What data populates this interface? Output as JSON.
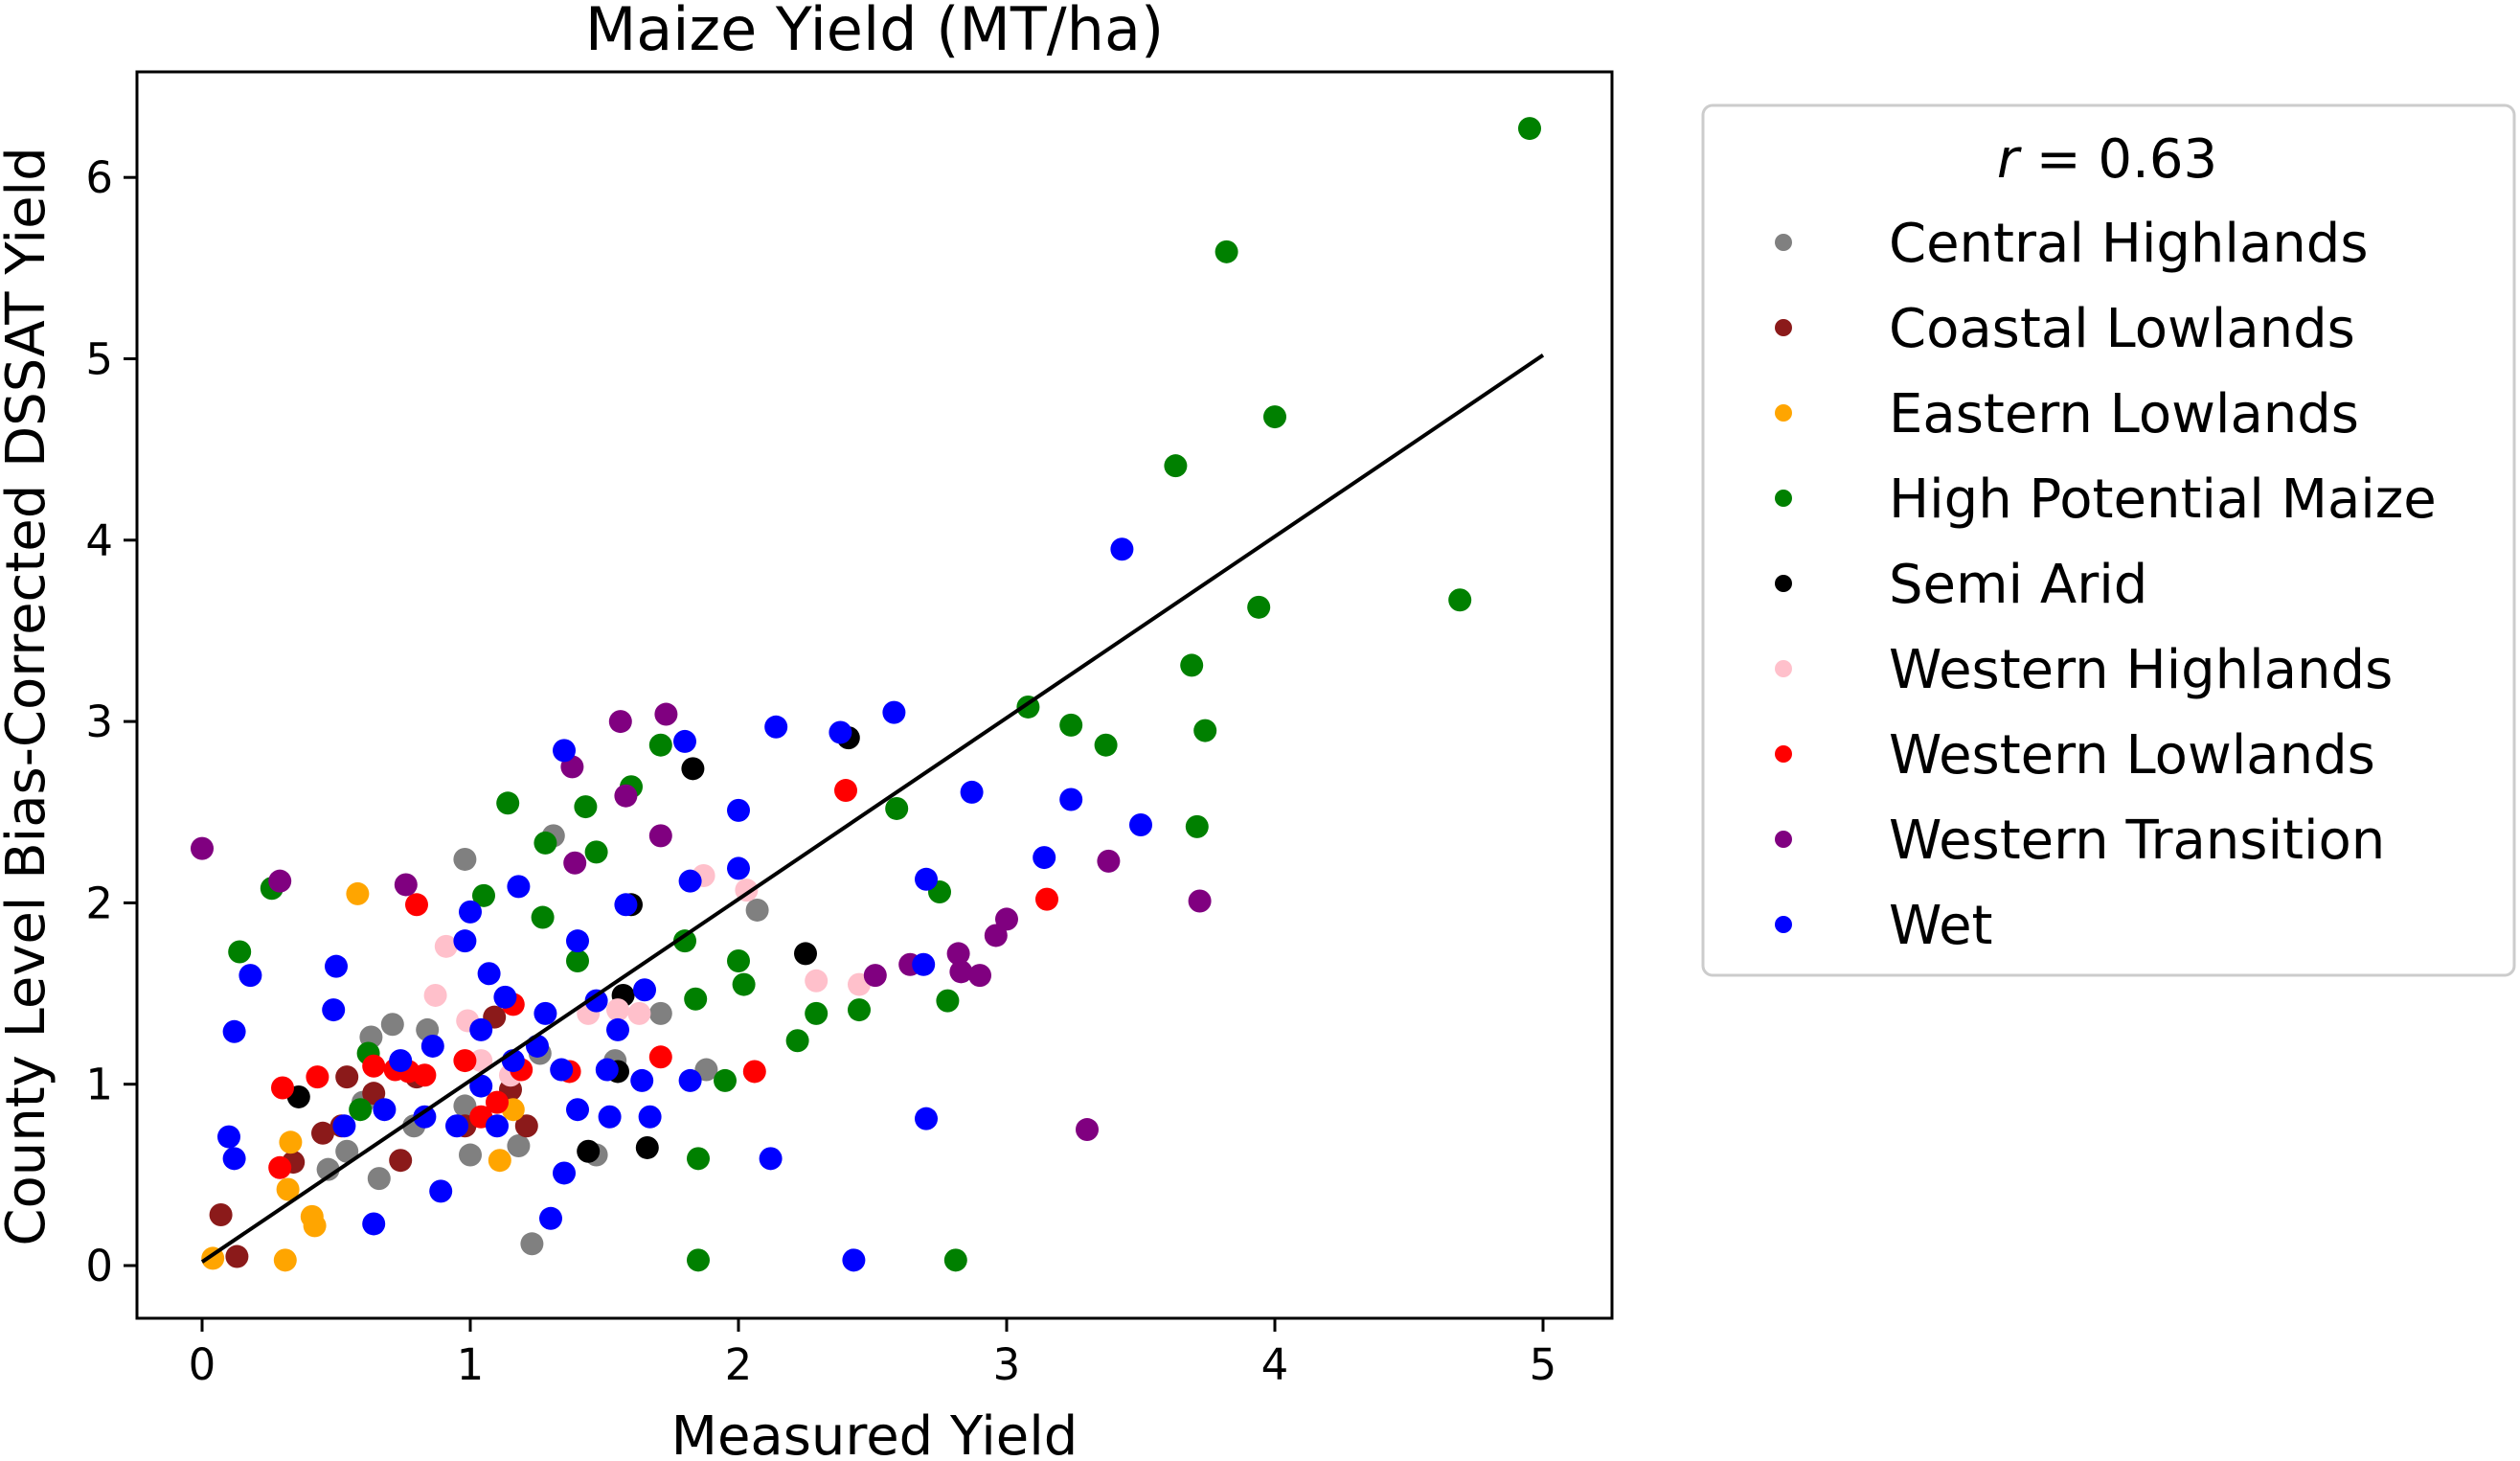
{
  "chart_data": {
    "type": "scatter",
    "title": "Maize Yield (MT/ha)",
    "xlabel": "Measured Yield",
    "ylabel": "County Level Bias-Corrected DSSAT Yield",
    "xlim": [
      -0.25,
      5.25
    ],
    "ylim": [
      -0.3,
      6.6
    ],
    "xticks": [
      0,
      1,
      2,
      3,
      4,
      5
    ],
    "yticks": [
      0,
      1,
      2,
      3,
      4,
      5,
      6
    ],
    "grid": false,
    "legend": {
      "placement": "outside-right",
      "title_var": "r",
      "title_value": " = 0.63"
    },
    "fit_line": {
      "x": [
        0,
        5
      ],
      "y": [
        0.02,
        5.02
      ],
      "color": "#000000"
    },
    "series": [
      {
        "name": "Central Highlands",
        "color": "#808080",
        "points": [
          [
            0.98,
            2.24
          ],
          [
            1.31,
            2.37
          ],
          [
            2.07,
            1.96
          ],
          [
            0.84,
            1.3
          ],
          [
            0.71,
            1.33
          ],
          [
            0.63,
            1.26
          ],
          [
            0.98,
            0.88
          ],
          [
            0.6,
            0.9
          ],
          [
            0.54,
            0.63
          ],
          [
            1.0,
            0.61
          ],
          [
            1.23,
            0.12
          ],
          [
            1.47,
            0.61
          ],
          [
            1.88,
            1.08
          ],
          [
            1.54,
            1.13
          ],
          [
            1.71,
            1.39
          ],
          [
            0.66,
            0.48
          ],
          [
            0.79,
            0.77
          ],
          [
            1.18,
            0.66
          ],
          [
            0.47,
            0.53
          ],
          [
            1.26,
            1.17
          ]
        ]
      },
      {
        "name": "Coastal Lowlands",
        "color": "#8b1a1a",
        "points": [
          [
            0.07,
            0.28
          ],
          [
            0.13,
            0.05
          ],
          [
            0.34,
            0.57
          ],
          [
            0.45,
            0.73
          ],
          [
            0.52,
            0.77
          ],
          [
            0.74,
            0.58
          ],
          [
            0.54,
            1.04
          ],
          [
            0.64,
            0.95
          ],
          [
            0.8,
            1.04
          ],
          [
            0.98,
            0.77
          ],
          [
            1.21,
            0.77
          ],
          [
            1.15,
            0.97
          ],
          [
            1.09,
            1.37
          ]
        ]
      },
      {
        "name": "Eastern Lowlands",
        "color": "#ffa500",
        "points": [
          [
            0.04,
            0.04
          ],
          [
            0.31,
            0.03
          ],
          [
            0.41,
            0.27
          ],
          [
            0.42,
            0.22
          ],
          [
            0.33,
            0.68
          ],
          [
            0.32,
            0.42
          ],
          [
            0.58,
            2.05
          ],
          [
            1.11,
            0.58
          ],
          [
            1.16,
            0.86
          ]
        ]
      },
      {
        "name": "High Potential Maize",
        "color": "#008000",
        "points": [
          [
            4.95,
            6.27
          ],
          [
            3.82,
            5.59
          ],
          [
            4.0,
            4.68
          ],
          [
            3.63,
            4.41
          ],
          [
            3.94,
            3.63
          ],
          [
            4.69,
            3.67
          ],
          [
            3.69,
            3.31
          ],
          [
            3.08,
            3.08
          ],
          [
            3.24,
            2.98
          ],
          [
            3.37,
            2.87
          ],
          [
            3.74,
            2.95
          ],
          [
            3.71,
            2.42
          ],
          [
            2.59,
            2.52
          ],
          [
            2.75,
            2.06
          ],
          [
            2.78,
            1.46
          ],
          [
            2.45,
            1.41
          ],
          [
            2.29,
            1.39
          ],
          [
            2.22,
            1.24
          ],
          [
            1.95,
            1.02
          ],
          [
            1.85,
            0.59
          ],
          [
            1.85,
            0.03
          ],
          [
            2.81,
            0.03
          ],
          [
            2.0,
            1.68
          ],
          [
            2.02,
            1.55
          ],
          [
            1.84,
            1.47
          ],
          [
            1.8,
            1.79
          ],
          [
            1.71,
            2.87
          ],
          [
            1.6,
            2.64
          ],
          [
            1.47,
            2.28
          ],
          [
            1.43,
            2.53
          ],
          [
            1.28,
            2.33
          ],
          [
            1.14,
            2.55
          ],
          [
            1.05,
            2.04
          ],
          [
            0.26,
            2.08
          ],
          [
            0.14,
            1.73
          ],
          [
            0.62,
            1.17
          ],
          [
            1.27,
            1.92
          ],
          [
            1.4,
            1.68
          ],
          [
            0.59,
            0.86
          ]
        ]
      },
      {
        "name": "Semi Arid",
        "color": "#000000",
        "points": [
          [
            2.41,
            2.91
          ],
          [
            1.83,
            2.74
          ],
          [
            1.6,
            1.99
          ],
          [
            2.25,
            1.72
          ],
          [
            1.57,
            1.49
          ],
          [
            1.55,
            1.07
          ],
          [
            1.66,
            0.65
          ],
          [
            1.44,
            0.63
          ],
          [
            0.36,
            0.93
          ]
        ]
      },
      {
        "name": "Western Highlands",
        "color": "#ffc0cb",
        "points": [
          [
            1.87,
            2.15
          ],
          [
            2.03,
            2.07
          ],
          [
            2.29,
            1.57
          ],
          [
            2.45,
            1.55
          ],
          [
            0.91,
            1.76
          ],
          [
            0.87,
            1.49
          ],
          [
            0.99,
            1.35
          ],
          [
            1.55,
            1.41
          ],
          [
            1.63,
            1.39
          ],
          [
            1.44,
            1.39
          ],
          [
            1.15,
            1.05
          ],
          [
            1.04,
            1.13
          ]
        ]
      },
      {
        "name": "Western Lowlands",
        "color": "#ff0000",
        "points": [
          [
            2.4,
            2.62
          ],
          [
            3.15,
            2.02
          ],
          [
            0.8,
            1.99
          ],
          [
            2.06,
            1.07
          ],
          [
            1.71,
            1.15
          ],
          [
            1.16,
            1.44
          ],
          [
            0.98,
            1.13
          ],
          [
            0.77,
            1.07
          ],
          [
            0.64,
            1.1
          ],
          [
            0.43,
            1.04
          ],
          [
            0.3,
            0.98
          ],
          [
            0.29,
            0.54
          ],
          [
            0.72,
            1.08
          ],
          [
            0.83,
            1.05
          ],
          [
            1.19,
            1.08
          ],
          [
            1.37,
            1.07
          ],
          [
            1.1,
            0.9
          ],
          [
            1.04,
            0.82
          ]
        ]
      },
      {
        "name": "Western Transition",
        "color": "#800080",
        "points": [
          [
            0,
            2.3
          ],
          [
            0.29,
            2.12
          ],
          [
            0.76,
            2.1
          ],
          [
            1.38,
            2.75
          ],
          [
            1.56,
            3.0
          ],
          [
            1.73,
            3.04
          ],
          [
            1.58,
            2.59
          ],
          [
            1.71,
            2.37
          ],
          [
            1.39,
            2.22
          ],
          [
            2.51,
            1.6
          ],
          [
            2.64,
            1.66
          ],
          [
            2.82,
            1.72
          ],
          [
            2.9,
            1.6
          ],
          [
            2.96,
            1.82
          ],
          [
            3.0,
            1.91
          ],
          [
            3.38,
            2.23
          ],
          [
            3.72,
            2.01
          ],
          [
            3.3,
            0.75
          ],
          [
            2.83,
            1.62
          ]
        ]
      },
      {
        "name": "Wet",
        "color": "#0000ff",
        "points": [
          [
            3.43,
            3.95
          ],
          [
            2.58,
            3.05
          ],
          [
            2.14,
            2.97
          ],
          [
            2.38,
            2.94
          ],
          [
            1.35,
            2.84
          ],
          [
            1.8,
            2.89
          ],
          [
            2.0,
            2.51
          ],
          [
            2.87,
            2.61
          ],
          [
            3.24,
            2.57
          ],
          [
            3.5,
            2.43
          ],
          [
            2.0,
            2.19
          ],
          [
            3.14,
            2.25
          ],
          [
            2.7,
            2.13
          ],
          [
            1.18,
            2.09
          ],
          [
            1.0,
            1.95
          ],
          [
            1.58,
            1.99
          ],
          [
            1.82,
            2.12
          ],
          [
            0.18,
            1.6
          ],
          [
            0.5,
            1.65
          ],
          [
            0.12,
            1.29
          ],
          [
            0.49,
            1.41
          ],
          [
            0.1,
            0.71
          ],
          [
            0.12,
            0.59
          ],
          [
            0.89,
            0.41
          ],
          [
            0.64,
            0.23
          ],
          [
            1.35,
            0.51
          ],
          [
            1.3,
            0.26
          ],
          [
            2.43,
            0.03
          ],
          [
            2.7,
            0.81
          ],
          [
            2.12,
            0.59
          ],
          [
            2.69,
            1.66
          ],
          [
            1.65,
            1.52
          ],
          [
            1.47,
            1.46
          ],
          [
            1.4,
            1.79
          ],
          [
            0.98,
            1.79
          ],
          [
            1.07,
            1.61
          ],
          [
            1.13,
            1.48
          ],
          [
            1.04,
            1.3
          ],
          [
            1.16,
            1.13
          ],
          [
            1.25,
            1.21
          ],
          [
            1.34,
            1.08
          ],
          [
            1.51,
            1.08
          ],
          [
            1.64,
            1.02
          ],
          [
            1.4,
            0.86
          ],
          [
            1.52,
            0.82
          ],
          [
            1.67,
            0.82
          ],
          [
            0.83,
            0.82
          ],
          [
            0.95,
            0.77
          ],
          [
            1.1,
            0.77
          ],
          [
            0.53,
            0.77
          ],
          [
            0.68,
            0.86
          ],
          [
            1.04,
            0.99
          ],
          [
            0.74,
            1.13
          ],
          [
            1.82,
            1.02
          ],
          [
            1.55,
            1.3
          ],
          [
            1.28,
            1.39
          ],
          [
            0.86,
            1.21
          ]
        ]
      }
    ]
  }
}
